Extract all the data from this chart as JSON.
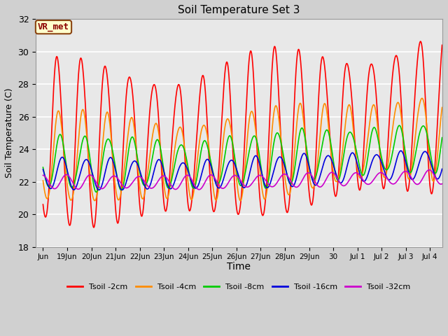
{
  "title": "Soil Temperature Set 3",
  "xlabel": "Time",
  "ylabel": "Soil Temperature (C)",
  "ylim": [
    18,
    32
  ],
  "fig_bg": "#d0d0d0",
  "plot_bg": "#e8e8e8",
  "grid_color": "#ffffff",
  "annotation_text": "VR_met",
  "annotation_bg": "#ffffcc",
  "annotation_border": "#8B4513",
  "annotation_text_color": "#8B0000",
  "yticks": [
    18,
    20,
    22,
    24,
    26,
    28,
    30,
    32
  ],
  "xtick_positions": [
    0.0,
    1,
    2,
    3,
    4,
    5,
    6,
    7,
    8,
    9,
    10,
    11,
    12,
    13,
    14,
    15,
    16
  ],
  "xtick_labels": [
    "Jun",
    "19Jun",
    "20Jun",
    "21Jun",
    "22Jun",
    "23Jun",
    "24Jun",
    "25Jun",
    "26Jun",
    "27Jun",
    "28Jun",
    "29Jun",
    "30",
    "Jul 1",
    "Jul 2",
    "Jul 3",
    "Jul 4"
  ],
  "series": [
    {
      "label": "Tsoil -2cm",
      "color": "#ff0000",
      "lw": 1.2
    },
    {
      "label": "Tsoil -4cm",
      "color": "#ff8c00",
      "lw": 1.2
    },
    {
      "label": "Tsoil -8cm",
      "color": "#00cc00",
      "lw": 1.2
    },
    {
      "label": "Tsoil -16cm",
      "color": "#0000dd",
      "lw": 1.2
    },
    {
      "label": "Tsoil -32cm",
      "color": "#cc00cc",
      "lw": 1.2
    }
  ],
  "base2": 24.5,
  "base4": 23.5,
  "base8": 23.2,
  "base16": 22.5,
  "base32": 22.0,
  "amp2": 4.5,
  "amp4": 2.5,
  "amp8": 1.5,
  "amp16": 0.9,
  "amp32": 0.4
}
